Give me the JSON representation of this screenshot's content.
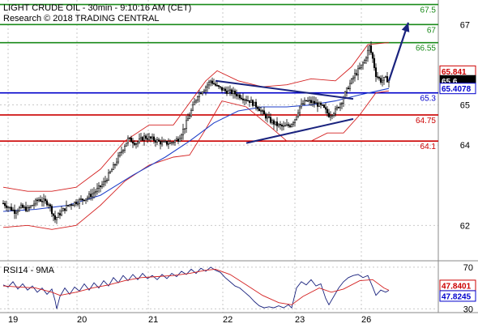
{
  "header": {
    "title_line": "LIGHT CRUDE OIL - 30min - 9:10:16 AM (CET)",
    "credit_line": "Research © 2018 TRADING CENTRAL"
  },
  "colors": {
    "green": "#1a8a1a",
    "red": "#cc0000",
    "blue": "#0000cc",
    "navy": "#1a237e",
    "price_tag": "#000000",
    "sma": "#1f3fc8",
    "bollinger": "#d42020",
    "rsi_line": "#1a237e",
    "rsi_ma": "#d42020"
  },
  "chart_data": [
    {
      "type": "candlestick",
      "panel": "price",
      "ylim": [
        61.2,
        67.45
      ],
      "y_ticks": [
        "62",
        "64",
        "65",
        "67"
      ],
      "x_ticks": [
        "19",
        "20",
        "21",
        "22",
        "23",
        "26"
      ],
      "levels": [
        {
          "label": "67.5",
          "value": 67.5,
          "color": "green"
        },
        {
          "label": "67",
          "value": 67.0,
          "color": "green"
        },
        {
          "label": "66.55",
          "value": 66.55,
          "color": "green"
        },
        {
          "label": "65.3",
          "value": 65.3,
          "color": "blue"
        },
        {
          "label": "64.75",
          "value": 64.75,
          "color": "red"
        },
        {
          "label": "64.1",
          "value": 64.1,
          "color": "red"
        }
      ],
      "price_tags": [
        {
          "label": "65.841",
          "value": 65.84,
          "style": "red-outline"
        },
        {
          "label": "65.6",
          "value": 65.6,
          "style": "black"
        },
        {
          "label": "65.4078",
          "value": 65.41,
          "style": "blue-outline"
        }
      ],
      "price_path": [
        [
          0,
          62.55
        ],
        [
          14,
          62.35
        ],
        [
          22,
          62.45
        ],
        [
          30,
          62.4
        ],
        [
          44,
          62.65
        ],
        [
          56,
          62.55
        ],
        [
          64,
          62.15
        ],
        [
          70,
          62.3
        ],
        [
          80,
          62.5
        ],
        [
          92,
          62.6
        ],
        [
          104,
          62.7
        ],
        [
          114,
          62.85
        ],
        [
          124,
          63.05
        ],
        [
          136,
          63.45
        ],
        [
          146,
          63.85
        ],
        [
          154,
          64.15
        ],
        [
          164,
          64.05
        ],
        [
          174,
          64.2
        ],
        [
          184,
          64.15
        ],
        [
          196,
          64.05
        ],
        [
          206,
          64.05
        ],
        [
          216,
          64.15
        ],
        [
          224,
          64.45
        ],
        [
          232,
          64.85
        ],
        [
          240,
          65.25
        ],
        [
          248,
          65.4
        ],
        [
          256,
          65.6
        ],
        [
          264,
          65.45
        ],
        [
          274,
          65.35
        ],
        [
          284,
          65.3
        ],
        [
          294,
          65.2
        ],
        [
          304,
          65.1
        ],
        [
          314,
          64.95
        ],
        [
          322,
          64.75
        ],
        [
          330,
          64.6
        ],
        [
          338,
          64.5
        ],
        [
          346,
          64.45
        ],
        [
          354,
          64.5
        ],
        [
          360,
          64.65
        ],
        [
          366,
          64.95
        ],
        [
          374,
          65.1
        ],
        [
          384,
          65.05
        ],
        [
          394,
          64.95
        ],
        [
          402,
          64.75
        ],
        [
          410,
          64.85
        ],
        [
          418,
          65.1
        ],
        [
          426,
          65.45
        ],
        [
          434,
          65.75
        ],
        [
          440,
          65.9
        ],
        [
          446,
          66.1
        ],
        [
          452,
          66.45
        ],
        [
          456,
          66.15
        ],
        [
          460,
          65.75
        ],
        [
          466,
          65.6
        ],
        [
          472,
          65.65
        ],
        [
          476,
          65.6
        ]
      ],
      "sma_path": [
        [
          0,
          62.35
        ],
        [
          40,
          62.4
        ],
        [
          80,
          62.5
        ],
        [
          120,
          62.75
        ],
        [
          160,
          63.25
        ],
        [
          200,
          63.7
        ],
        [
          230,
          64.1
        ],
        [
          260,
          64.55
        ],
        [
          290,
          64.85
        ],
        [
          320,
          64.95
        ],
        [
          350,
          64.95
        ],
        [
          380,
          65.0
        ],
        [
          410,
          65.1
        ],
        [
          440,
          65.25
        ],
        [
          476,
          65.41
        ]
      ],
      "bb_upper_path": [
        [
          0,
          62.95
        ],
        [
          30,
          62.85
        ],
        [
          60,
          62.85
        ],
        [
          90,
          62.95
        ],
        [
          120,
          63.4
        ],
        [
          150,
          64.1
        ],
        [
          180,
          64.5
        ],
        [
          210,
          64.5
        ],
        [
          230,
          65.05
        ],
        [
          250,
          65.6
        ],
        [
          264,
          65.85
        ],
        [
          290,
          65.6
        ],
        [
          320,
          65.45
        ],
        [
          350,
          65.5
        ],
        [
          380,
          65.65
        ],
        [
          410,
          65.6
        ],
        [
          430,
          65.95
        ],
        [
          450,
          66.5
        ],
        [
          476,
          66.55
        ]
      ],
      "bb_lower_path": [
        [
          0,
          61.95
        ],
        [
          30,
          62.0
        ],
        [
          60,
          61.9
        ],
        [
          90,
          62.0
        ],
        [
          120,
          62.5
        ],
        [
          150,
          63.1
        ],
        [
          180,
          63.5
        ],
        [
          210,
          63.7
        ],
        [
          230,
          63.75
        ],
        [
          250,
          64.4
        ],
        [
          270,
          65.1
        ],
        [
          300,
          64.95
        ],
        [
          330,
          64.45
        ],
        [
          350,
          64.1
        ],
        [
          380,
          64.1
        ],
        [
          400,
          64.3
        ],
        [
          420,
          64.3
        ],
        [
          440,
          64.75
        ],
        [
          460,
          65.3
        ],
        [
          476,
          65.35
        ]
      ],
      "trendlines": [
        {
          "points": [
            [
              262,
              65.6
            ],
            [
              432,
              65.15
            ]
          ],
          "color": "navy"
        },
        {
          "points": [
            [
              300,
              64.05
            ],
            [
              432,
              64.65
            ]
          ],
          "color": "navy"
        }
      ],
      "forecast_arrow": {
        "points": [
          [
            476,
            65.6
          ],
          [
            500,
            67.05
          ]
        ],
        "color": "navy"
      }
    },
    {
      "type": "line",
      "panel": "rsi",
      "title": "RSI14 - 9MA",
      "ylim": [
        28,
        73
      ],
      "y_ticks": [
        "30",
        "70"
      ],
      "value_tags": [
        {
          "label": "47.8401",
          "value": 47.84,
          "style": "red-outline"
        },
        {
          "label": "47.8245",
          "value": 47.82,
          "style": "blue-outline"
        }
      ],
      "series": [
        {
          "color": "rsi_line",
          "points": [
            [
              0,
              53
            ],
            [
              6,
              51
            ],
            [
              12,
              56
            ],
            [
              18,
              49
            ],
            [
              24,
              54
            ],
            [
              30,
              48
            ],
            [
              36,
              52
            ],
            [
              42,
              46
            ],
            [
              48,
              50
            ],
            [
              54,
              44
            ],
            [
              60,
              49
            ],
            [
              64,
              38
            ],
            [
              66,
              30
            ],
            [
              70,
              42
            ],
            [
              76,
              50
            ],
            [
              82,
              44
            ],
            [
              88,
              51
            ],
            [
              94,
              47
            ],
            [
              100,
              54
            ],
            [
              106,
              48
            ],
            [
              112,
              55
            ],
            [
              118,
              50
            ],
            [
              124,
              57
            ],
            [
              130,
              52
            ],
            [
              136,
              60
            ],
            [
              142,
              55
            ],
            [
              148,
              62
            ],
            [
              154,
              57
            ],
            [
              160,
              63
            ],
            [
              166,
              58
            ],
            [
              172,
              64
            ],
            [
              178,
              59
            ],
            [
              184,
              62
            ],
            [
              190,
              58
            ],
            [
              196,
              63
            ],
            [
              202,
              59
            ],
            [
              208,
              64
            ],
            [
              214,
              61
            ],
            [
              220,
              66
            ],
            [
              226,
              63
            ],
            [
              232,
              68
            ],
            [
              238,
              64
            ],
            [
              244,
              69
            ],
            [
              250,
              66
            ],
            [
              256,
              70
            ],
            [
              262,
              67
            ],
            [
              268,
              65
            ],
            [
              274,
              60
            ],
            [
              280,
              56
            ],
            [
              286,
              52
            ],
            [
              292,
              50
            ],
            [
              298,
              46
            ],
            [
              304,
              42
            ],
            [
              310,
              37
            ],
            [
              316,
              33
            ],
            [
              322,
              31
            ],
            [
              328,
              32
            ],
            [
              334,
              31
            ],
            [
              340,
              33
            ],
            [
              346,
              31
            ],
            [
              352,
              34
            ],
            [
              356,
              31
            ],
            [
              362,
              50
            ],
            [
              368,
              56
            ],
            [
              374,
              53
            ],
            [
              380,
              58
            ],
            [
              386,
              52
            ],
            [
              392,
              54
            ],
            [
              398,
              40
            ],
            [
              402,
              34
            ],
            [
              408,
              42
            ],
            [
              414,
              50
            ],
            [
              420,
              56
            ],
            [
              426,
              60
            ],
            [
              432,
              62
            ],
            [
              438,
              63
            ],
            [
              444,
              60
            ],
            [
              450,
              62
            ],
            [
              456,
              51
            ],
            [
              460,
              43
            ],
            [
              466,
              48
            ],
            [
              472,
              46
            ],
            [
              476,
              47.8
            ]
          ]
        },
        {
          "color": "rsi_ma",
          "points": [
            [
              0,
              52
            ],
            [
              20,
              51
            ],
            [
              40,
              50
            ],
            [
              60,
              46
            ],
            [
              70,
              43
            ],
            [
              90,
              46
            ],
            [
              110,
              50
            ],
            [
              130,
              53
            ],
            [
              150,
              57
            ],
            [
              170,
              60
            ],
            [
              190,
              61
            ],
            [
              210,
              62
            ],
            [
              230,
              64
            ],
            [
              250,
              67
            ],
            [
              262,
              68
            ],
            [
              280,
              63
            ],
            [
              300,
              53
            ],
            [
              320,
              43
            ],
            [
              340,
              36
            ],
            [
              356,
              34
            ],
            [
              370,
              42
            ],
            [
              390,
              50
            ],
            [
              405,
              46
            ],
            [
              420,
              49
            ],
            [
              440,
              57
            ],
            [
              456,
              58
            ],
            [
              470,
              50
            ],
            [
              476,
              47.84
            ]
          ]
        }
      ]
    }
  ]
}
